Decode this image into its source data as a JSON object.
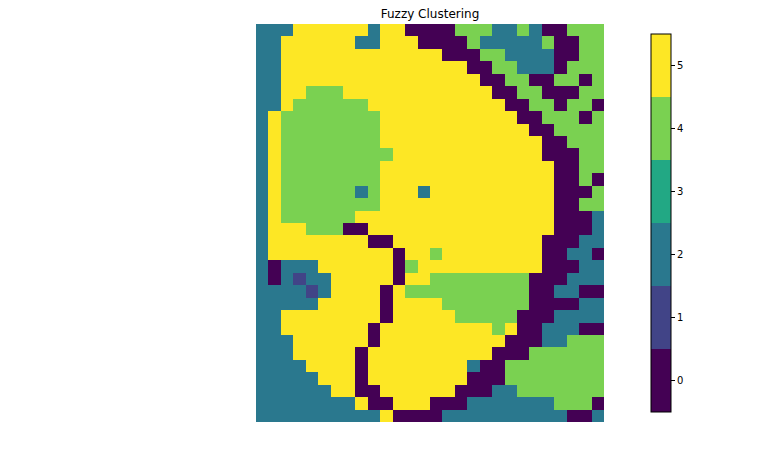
{
  "chart_data": {
    "type": "heatmap",
    "title": "Fuzzy Clustering",
    "tick_labels": false,
    "colors": [
      "#440154",
      "#414487",
      "#2a788e",
      "#22a884",
      "#7ad151",
      "#fde725"
    ],
    "colorbar": {
      "range": [
        -0.5,
        5.5
      ],
      "ticks": [
        0,
        1,
        2,
        3,
        4,
        5
      ]
    },
    "cells": [
      [
        2,
        2,
        2,
        5,
        5,
        5,
        5,
        5,
        5,
        2,
        5,
        5,
        0,
        0,
        0,
        0,
        4,
        4,
        4,
        2,
        2,
        4,
        2,
        0,
        0,
        4,
        4,
        4
      ],
      [
        2,
        2,
        5,
        5,
        5,
        5,
        5,
        5,
        2,
        2,
        5,
        5,
        5,
        0,
        0,
        0,
        0,
        4,
        2,
        2,
        2,
        2,
        2,
        4,
        0,
        0,
        4,
        4
      ],
      [
        2,
        2,
        5,
        5,
        5,
        5,
        5,
        5,
        5,
        5,
        5,
        5,
        5,
        5,
        5,
        0,
        0,
        0,
        4,
        4,
        2,
        2,
        2,
        2,
        0,
        0,
        4,
        4
      ],
      [
        2,
        2,
        5,
        5,
        5,
        5,
        5,
        5,
        5,
        5,
        5,
        5,
        5,
        5,
        5,
        5,
        5,
        0,
        0,
        4,
        4,
        2,
        2,
        2,
        0,
        4,
        4,
        4
      ],
      [
        2,
        2,
        5,
        5,
        5,
        5,
        5,
        5,
        5,
        5,
        5,
        5,
        5,
        5,
        5,
        5,
        5,
        5,
        0,
        0,
        4,
        4,
        0,
        0,
        4,
        4,
        0,
        4
      ],
      [
        2,
        2,
        5,
        5,
        4,
        4,
        4,
        5,
        5,
        5,
        5,
        5,
        5,
        5,
        5,
        5,
        5,
        5,
        5,
        0,
        0,
        4,
        4,
        0,
        0,
        0,
        4,
        4
      ],
      [
        2,
        2,
        5,
        4,
        4,
        4,
        4,
        4,
        4,
        5,
        5,
        5,
        5,
        5,
        5,
        5,
        5,
        5,
        5,
        5,
        0,
        0,
        4,
        4,
        0,
        4,
        4,
        0
      ],
      [
        2,
        5,
        4,
        4,
        4,
        4,
        4,
        4,
        4,
        4,
        5,
        5,
        5,
        5,
        5,
        5,
        5,
        5,
        5,
        5,
        5,
        0,
        0,
        4,
        4,
        4,
        0,
        4
      ],
      [
        2,
        5,
        4,
        4,
        4,
        4,
        4,
        4,
        4,
        4,
        5,
        5,
        5,
        5,
        5,
        5,
        5,
        5,
        5,
        5,
        5,
        5,
        0,
        0,
        4,
        4,
        4,
        4
      ],
      [
        2,
        5,
        4,
        4,
        4,
        4,
        4,
        4,
        4,
        4,
        5,
        5,
        5,
        5,
        5,
        5,
        5,
        5,
        5,
        5,
        5,
        5,
        5,
        0,
        0,
        4,
        4,
        4
      ],
      [
        2,
        5,
        4,
        4,
        4,
        4,
        4,
        4,
        4,
        4,
        4,
        5,
        5,
        5,
        5,
        5,
        5,
        5,
        5,
        5,
        5,
        5,
        5,
        0,
        0,
        0,
        4,
        4
      ],
      [
        2,
        5,
        4,
        4,
        4,
        4,
        4,
        4,
        4,
        4,
        5,
        5,
        5,
        5,
        5,
        5,
        5,
        5,
        5,
        5,
        5,
        5,
        5,
        5,
        0,
        0,
        4,
        4
      ],
      [
        2,
        5,
        4,
        4,
        4,
        4,
        4,
        4,
        4,
        4,
        5,
        5,
        5,
        5,
        5,
        5,
        5,
        5,
        5,
        5,
        5,
        5,
        5,
        5,
        0,
        0,
        4,
        0
      ],
      [
        2,
        5,
        4,
        4,
        4,
        4,
        4,
        4,
        2,
        4,
        5,
        5,
        5,
        2,
        5,
        5,
        5,
        5,
        5,
        5,
        5,
        5,
        5,
        5,
        0,
        0,
        0,
        4
      ],
      [
        2,
        5,
        4,
        4,
        4,
        4,
        4,
        4,
        4,
        4,
        5,
        5,
        5,
        5,
        5,
        5,
        5,
        5,
        5,
        5,
        5,
        5,
        5,
        5,
        0,
        0,
        4,
        4
      ],
      [
        2,
        5,
        4,
        4,
        4,
        4,
        4,
        4,
        5,
        5,
        5,
        5,
        5,
        5,
        5,
        5,
        5,
        5,
        5,
        5,
        5,
        5,
        5,
        5,
        0,
        0,
        0,
        2
      ],
      [
        2,
        5,
        5,
        5,
        4,
        4,
        4,
        0,
        0,
        5,
        5,
        5,
        5,
        5,
        5,
        5,
        5,
        5,
        5,
        5,
        5,
        5,
        5,
        5,
        0,
        0,
        0,
        2
      ],
      [
        2,
        5,
        5,
        5,
        5,
        5,
        5,
        5,
        5,
        0,
        0,
        5,
        5,
        5,
        5,
        5,
        5,
        5,
        5,
        5,
        5,
        5,
        5,
        0,
        0,
        0,
        2,
        2
      ],
      [
        2,
        5,
        5,
        5,
        5,
        5,
        5,
        5,
        5,
        5,
        5,
        0,
        5,
        5,
        4,
        5,
        5,
        5,
        5,
        5,
        5,
        5,
        5,
        0,
        0,
        2,
        2,
        0
      ],
      [
        2,
        0,
        2,
        2,
        2,
        5,
        5,
        5,
        5,
        5,
        5,
        0,
        4,
        5,
        5,
        5,
        5,
        5,
        5,
        5,
        5,
        5,
        5,
        0,
        0,
        0,
        2,
        2
      ],
      [
        2,
        0,
        2,
        1,
        2,
        2,
        5,
        5,
        5,
        5,
        5,
        0,
        5,
        5,
        4,
        4,
        4,
        4,
        4,
        4,
        4,
        4,
        0,
        0,
        0,
        2,
        2,
        2
      ],
      [
        2,
        2,
        2,
        2,
        1,
        2,
        5,
        5,
        5,
        5,
        0,
        5,
        4,
        4,
        4,
        4,
        4,
        4,
        4,
        4,
        4,
        4,
        0,
        0,
        2,
        2,
        0,
        0
      ],
      [
        2,
        2,
        2,
        2,
        2,
        5,
        5,
        5,
        5,
        5,
        0,
        5,
        5,
        5,
        5,
        4,
        4,
        4,
        4,
        4,
        4,
        4,
        0,
        0,
        0,
        0,
        2,
        2
      ],
      [
        2,
        2,
        5,
        5,
        5,
        5,
        5,
        5,
        5,
        5,
        0,
        5,
        5,
        5,
        5,
        5,
        4,
        4,
        4,
        4,
        4,
        0,
        0,
        0,
        2,
        2,
        2,
        2
      ],
      [
        2,
        2,
        5,
        5,
        5,
        5,
        5,
        5,
        5,
        0,
        5,
        5,
        5,
        5,
        5,
        5,
        5,
        5,
        5,
        4,
        5,
        0,
        0,
        2,
        2,
        2,
        0,
        0
      ],
      [
        2,
        2,
        2,
        5,
        5,
        5,
        5,
        5,
        5,
        0,
        5,
        5,
        5,
        5,
        5,
        5,
        5,
        5,
        5,
        5,
        0,
        0,
        0,
        2,
        2,
        4,
        4,
        4
      ],
      [
        2,
        2,
        2,
        5,
        5,
        5,
        5,
        5,
        0,
        5,
        5,
        5,
        5,
        5,
        5,
        5,
        5,
        5,
        5,
        0,
        0,
        0,
        4,
        4,
        4,
        4,
        4,
        4
      ],
      [
        2,
        2,
        2,
        2,
        5,
        5,
        5,
        5,
        0,
        5,
        5,
        5,
        5,
        5,
        5,
        5,
        5,
        2,
        0,
        0,
        4,
        4,
        4,
        4,
        4,
        4,
        4,
        4
      ],
      [
        2,
        2,
        2,
        2,
        2,
        5,
        5,
        5,
        0,
        5,
        5,
        5,
        5,
        5,
        5,
        5,
        5,
        0,
        0,
        0,
        4,
        4,
        4,
        4,
        4,
        4,
        4,
        4
      ],
      [
        2,
        2,
        2,
        2,
        2,
        2,
        5,
        5,
        0,
        0,
        5,
        5,
        5,
        5,
        5,
        5,
        0,
        0,
        0,
        2,
        2,
        4,
        4,
        4,
        4,
        4,
        4,
        4
      ],
      [
        2,
        2,
        2,
        2,
        2,
        2,
        2,
        2,
        5,
        0,
        0,
        5,
        5,
        5,
        0,
        0,
        0,
        2,
        2,
        2,
        2,
        2,
        2,
        2,
        4,
        4,
        4,
        0
      ],
      [
        2,
        2,
        2,
        2,
        2,
        2,
        2,
        2,
        2,
        2,
        5,
        0,
        0,
        0,
        0,
        2,
        2,
        2,
        2,
        2,
        2,
        2,
        2,
        2,
        2,
        0,
        0,
        2
      ]
    ]
  }
}
